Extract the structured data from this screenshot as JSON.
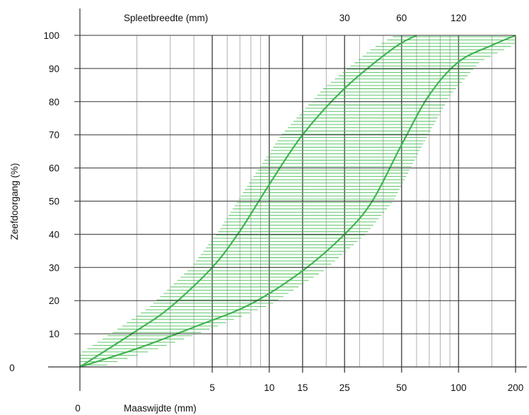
{
  "chart_data": {
    "type": "area",
    "title": "",
    "xlabel": "Maaswijdte (mm)",
    "ylabel": "Zeefdoorgang (%)",
    "top_axis": {
      "label": "Spleetbreedte (mm)",
      "ticks": [
        {
          "label": "30",
          "at": 25
        },
        {
          "label": "60",
          "at": 50
        },
        {
          "label": "120",
          "at": 100
        }
      ]
    },
    "x_scale": "log",
    "xlim": [
      1,
      200
    ],
    "ylim": [
      0,
      100
    ],
    "x_origin_label": "0",
    "y_origin_label": "0",
    "x_ticks": [
      5,
      10,
      15,
      25,
      50,
      100,
      200
    ],
    "y_ticks": [
      10,
      20,
      30,
      40,
      50,
      60,
      70,
      80,
      90,
      100
    ],
    "x_minor_gridlines": [
      2,
      3,
      4,
      6,
      7,
      8,
      9,
      20,
      30,
      40,
      60,
      70,
      80,
      90,
      150
    ],
    "series": [
      {
        "role": "fine-limit",
        "x": [
          1,
          2,
          3,
          5,
          7,
          10,
          15,
          25,
          45,
          60
        ],
        "y": [
          0,
          11,
          18,
          30,
          41,
          55,
          70,
          84,
          96,
          100
        ]
      },
      {
        "role": "coarse-limit",
        "x": [
          1,
          2,
          4,
          8,
          15,
          25,
          35,
          50,
          70,
          100,
          150,
          200
        ],
        "y": [
          0,
          5.5,
          12,
          19,
          29,
          40,
          50,
          67,
          82,
          92,
          97,
          100
        ]
      }
    ],
    "band": "hatched between the two limit curves",
    "colors": {
      "curve": "#3fb34f",
      "band": "#4cbf5a",
      "gridline": "#b0b0b0",
      "major_gridline": "#555555"
    }
  }
}
